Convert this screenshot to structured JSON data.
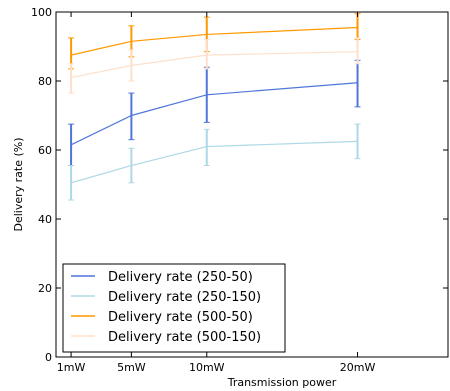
{
  "chart_data": {
    "type": "line",
    "xlabel": "Transmission power",
    "ylabel": "Delivery rate (%)",
    "x_categories": [
      "1mW",
      "5mW",
      "10mW",
      "20mW"
    ],
    "x_values": [
      1,
      5,
      10,
      20
    ],
    "xlim": [
      0,
      26
    ],
    "ylim": [
      0,
      100
    ],
    "yticks": [
      "0",
      "20",
      "40",
      "60",
      "80",
      "100"
    ],
    "grid": false,
    "legend_position": "bottom-left",
    "series": [
      {
        "name": "Delivery rate (250-50)",
        "color": "#4f76d9",
        "values": [
          61.5,
          70,
          76,
          79.5
        ],
        "err_low": [
          55.5,
          63,
          68,
          72.5
        ],
        "err_high": [
          67.5,
          76.5,
          84,
          86
        ]
      },
      {
        "name": "Delivery rate (250-150)",
        "color": "#add8e6",
        "values": [
          50.5,
          55.5,
          61,
          62.5
        ],
        "err_low": [
          45.5,
          50.5,
          55.5,
          57.5
        ],
        "err_high": [
          55.5,
          60.5,
          66,
          67.5
        ]
      },
      {
        "name": "Delivery rate (500-50)",
        "color": "#ff9900",
        "values": [
          87.5,
          91.5,
          93.5,
          95.5
        ],
        "err_low": [
          83.5,
          87,
          88.5,
          92
        ],
        "err_high": [
          92.5,
          96,
          98.5,
          99.5
        ]
      },
      {
        "name": "Delivery rate (500-150)",
        "color": "#fde0cb",
        "values": [
          81,
          84.5,
          87.5,
          88.5
        ],
        "err_low": [
          76.5,
          80,
          83.5,
          85
        ],
        "err_high": [
          85,
          89,
          92,
          92.5
        ]
      }
    ]
  }
}
